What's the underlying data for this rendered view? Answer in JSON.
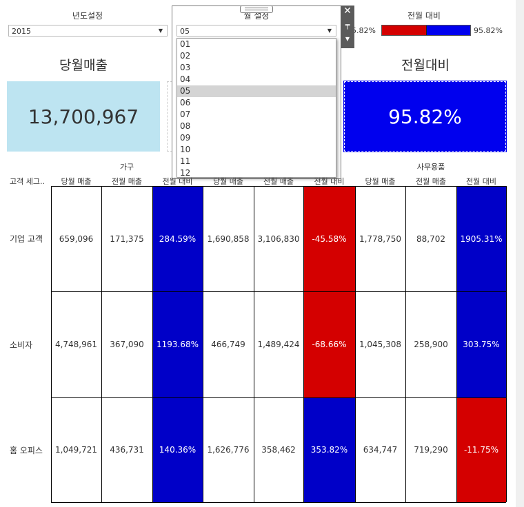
{
  "filters": {
    "year_label": "년도설정",
    "year_value": "2015",
    "month_label": "월 설정",
    "month_value": "05",
    "month_options": [
      "01",
      "02",
      "03",
      "04",
      "05",
      "06",
      "07",
      "08",
      "09",
      "10",
      "11",
      "12"
    ],
    "month_selected_index": 4,
    "compare_label": "전월 대비",
    "compare_left": "5.82%",
    "compare_right": "95.82%"
  },
  "kpis": {
    "current_title": "당월매출",
    "current_value": "13,700,967",
    "compare_title": "전월대비",
    "compare_value": "95.82%"
  },
  "table": {
    "segment_header": "고객 세그..",
    "categories": [
      "가구",
      "",
      "사무용품"
    ],
    "sub_headers": [
      "당월 매출",
      "전월 매출",
      "전월 대비",
      "당월 매출",
      "전월 매출",
      "전월 대비",
      "당월 매출",
      "전월 매출",
      "전월 대비"
    ],
    "rows": [
      {
        "label": "기업 고객",
        "values": [
          "659,096",
          "171,375",
          "284.59%",
          "1,690,858",
          "3,106,830",
          "-45.58%",
          "1,778,750",
          "88,702",
          "1905.31%"
        ],
        "signs": [
          "",
          "",
          "pos",
          "",
          "",
          "neg",
          "",
          "",
          "pos"
        ]
      },
      {
        "label": "소비자",
        "values": [
          "4,748,961",
          "367,090",
          "1193.68%",
          "466,749",
          "1,489,424",
          "-68.66%",
          "1,045,308",
          "258,900",
          "303.75%"
        ],
        "signs": [
          "",
          "",
          "pos",
          "",
          "",
          "neg",
          "",
          "",
          "pos"
        ]
      },
      {
        "label": "홈 오피스",
        "values": [
          "1,049,721",
          "436,731",
          "140.36%",
          "1,626,776",
          "358,462",
          "353.82%",
          "634,747",
          "719,290",
          "-11.75%"
        ],
        "signs": [
          "",
          "",
          "pos",
          "",
          "",
          "pos",
          "",
          "",
          "neg"
        ]
      }
    ]
  },
  "colors": {
    "positive": "#0000c8",
    "negative": "#d40000",
    "kpi_bg": "#bde4f1"
  },
  "icons": {
    "close": "close-icon",
    "pin": "pin-icon",
    "menu": "chevron-down-icon",
    "grip": "drag-handle-icon"
  }
}
